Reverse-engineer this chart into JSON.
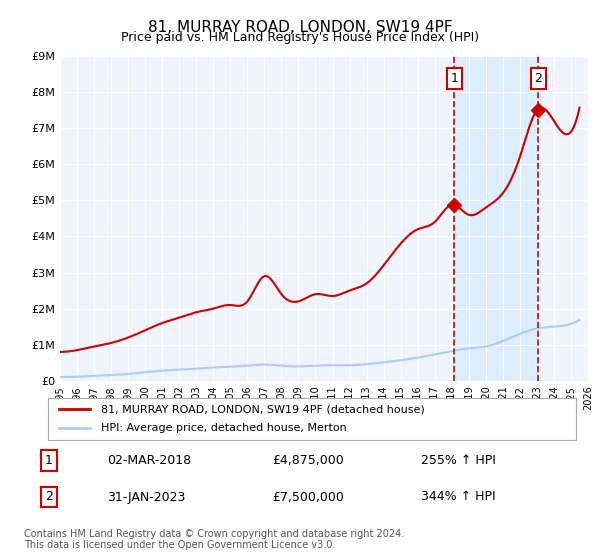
{
  "title": "81, MURRAY ROAD, LONDON, SW19 4PF",
  "subtitle": "Price paid vs. HM Land Registry's House Price Index (HPI)",
  "ylabel": "",
  "xlabel": "",
  "ylim": [
    0,
    9000000
  ],
  "xlim_start": 1995.0,
  "xlim_end": 2026.0,
  "yticks": [
    0,
    1000000,
    2000000,
    3000000,
    4000000,
    5000000,
    6000000,
    7000000,
    8000000,
    9000000
  ],
  "ytick_labels": [
    "£0",
    "£1M",
    "£2M",
    "£3M",
    "£4M",
    "£5M",
    "£6M",
    "£7M",
    "£8M",
    "£9M"
  ],
  "xticks": [
    1995,
    1996,
    1997,
    1998,
    1999,
    2000,
    2001,
    2002,
    2003,
    2004,
    2005,
    2006,
    2007,
    2008,
    2009,
    2010,
    2011,
    2012,
    2013,
    2014,
    2015,
    2016,
    2017,
    2018,
    2019,
    2020,
    2021,
    2022,
    2023,
    2024,
    2025,
    2026
  ],
  "bg_color": "#ffffff",
  "plot_bg_color": "#f0f4ff",
  "grid_color": "#ffffff",
  "hpi_line_color": "#aaccff",
  "price_line_color": "#cc0000",
  "shade_color": "#ddeeff",
  "marker1_x": 2018.15,
  "marker1_y": 4875000,
  "marker2_x": 2023.08,
  "marker2_y": 7500000,
  "vline1_x": 2018.15,
  "vline2_x": 2023.08,
  "legend_line1": "81, MURRAY ROAD, LONDON, SW19 4PF (detached house)",
  "legend_line2": "HPI: Average price, detached house, Merton",
  "table_row1": [
    "1",
    "02-MAR-2018",
    "£4,875,000",
    "255% ↑ HPI"
  ],
  "table_row2": [
    "2",
    "31-JAN-2023",
    "£7,500,000",
    "344% ↑ HPI"
  ],
  "footnote1": "Contains HM Land Registry data © Crown copyright and database right 2024.",
  "footnote2": "This data is licensed under the Open Government Licence v3.0."
}
